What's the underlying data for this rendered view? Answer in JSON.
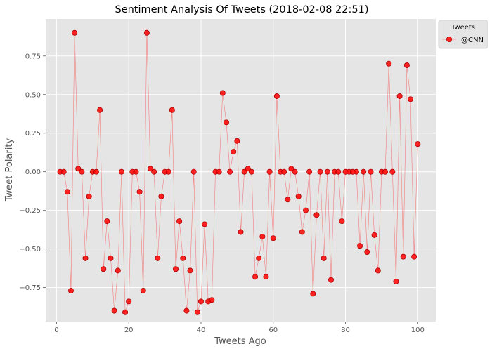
{
  "chart_data": {
    "type": "line",
    "title": "Sentiment Analysis Of Tweets (2018-02-08 22:51)",
    "xlabel": "Tweets Ago",
    "ylabel": "Tweet Polarity",
    "xlim": [
      -3,
      105
    ],
    "ylim": [
      -0.97,
      0.99
    ],
    "xticks": [
      0,
      20,
      40,
      60,
      80,
      100
    ],
    "yticks": [
      -0.75,
      -0.5,
      -0.25,
      0.0,
      0.25,
      0.5,
      0.75
    ],
    "ytick_labels": [
      "−0.75",
      "−0.50",
      "−0.25",
      "0.00",
      "0.25",
      "0.50",
      "0.75"
    ],
    "grid": true,
    "legend": {
      "title": "Tweets",
      "placement": "outside-top-right"
    },
    "series": [
      {
        "name": "@CNN",
        "color": "#ff0000",
        "x": [
          1,
          2,
          3,
          4,
          5,
          6,
          7,
          8,
          9,
          10,
          11,
          12,
          13,
          14,
          15,
          16,
          17,
          18,
          19,
          20,
          21,
          22,
          23,
          24,
          25,
          26,
          27,
          28,
          29,
          30,
          31,
          32,
          33,
          34,
          35,
          36,
          37,
          38,
          39,
          40,
          41,
          42,
          43,
          44,
          45,
          46,
          47,
          48,
          49,
          50,
          51,
          52,
          53,
          54,
          55,
          56,
          57,
          58,
          59,
          60,
          61,
          62,
          63,
          64,
          65,
          66,
          67,
          68,
          69,
          70,
          71,
          72,
          73,
          74,
          75,
          76,
          77,
          78,
          79,
          80,
          81,
          82,
          83,
          84,
          85,
          86,
          87,
          88,
          89,
          90,
          91,
          92,
          93,
          94,
          95,
          96,
          97,
          98,
          99,
          100
        ],
        "y": [
          0.0,
          0.0,
          -0.13,
          -0.77,
          0.9,
          0.02,
          0.0,
          -0.56,
          -0.16,
          0.0,
          0.0,
          0.4,
          -0.63,
          -0.32,
          -0.56,
          -0.9,
          -0.64,
          0.0,
          -0.91,
          -0.84,
          0.0,
          0.0,
          -0.13,
          -0.77,
          0.9,
          0.02,
          0.0,
          -0.56,
          -0.16,
          0.0,
          0.0,
          0.4,
          -0.63,
          -0.32,
          -0.56,
          -0.9,
          -0.64,
          0.0,
          -0.91,
          -0.84,
          -0.34,
          -0.84,
          -0.83,
          0.0,
          0.0,
          0.51,
          0.32,
          0.0,
          0.13,
          0.2,
          -0.39,
          0.0,
          0.02,
          0.0,
          -0.68,
          -0.56,
          -0.42,
          -0.68,
          0.0,
          -0.43,
          0.49,
          0.0,
          0.0,
          -0.18,
          0.02,
          0.0,
          -0.16,
          -0.39,
          -0.25,
          0.0,
          -0.79,
          -0.28,
          0.0,
          -0.56,
          0.0,
          -0.7,
          0.0,
          0.0,
          -0.32,
          0.0,
          0.0,
          0.0,
          0.0,
          -0.48,
          0.0,
          -0.52,
          0.0,
          -0.41,
          -0.64,
          0.0,
          0.0,
          0.7,
          0.0,
          -0.71,
          0.49,
          -0.55,
          0.69,
          0.47,
          -0.55,
          0.18
        ]
      }
    ]
  }
}
